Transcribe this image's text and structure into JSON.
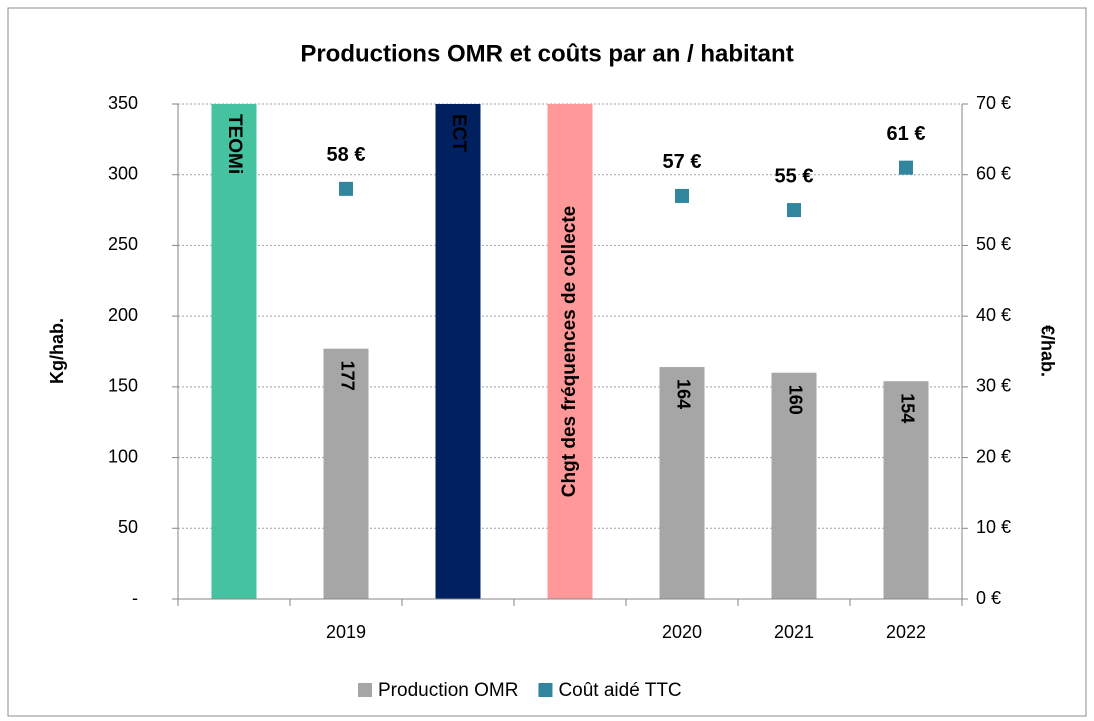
{
  "chart_data": {
    "type": "bar",
    "title": "Productions OMR et coûts par an / habitant",
    "categories": [
      null,
      "2019",
      null,
      null,
      "2020",
      "2021",
      "2022"
    ],
    "series": [
      {
        "name": "Production OMR",
        "type": "bar",
        "color": "#a6a6a6",
        "values": [
          null,
          177,
          null,
          null,
          164,
          160,
          154
        ]
      },
      {
        "name": "Coût aidé TTC",
        "type": "scatter",
        "axis": "y2",
        "color": "#31859c",
        "values": [
          null,
          58,
          null,
          null,
          57,
          55,
          61
        ],
        "value_labels": [
          null,
          "58 €",
          null,
          null,
          "57 €",
          "55 €",
          "61 €"
        ]
      }
    ],
    "annotations": [
      {
        "text": "TEOMi",
        "color": "#45c29f",
        "text_color": "#000000"
      },
      {
        "text": "ECT",
        "color": "#002060",
        "text_color": "#ffffff"
      },
      {
        "text": "Chgt des fréquences de collecte",
        "color": "#ff9999",
        "text_color": "#ffffff"
      }
    ],
    "ylabel": "Kg/hab.",
    "y2label": "€/hab.",
    "ylim": [
      0,
      350
    ],
    "yticks": [
      {
        "value": 0,
        "label": "-"
      },
      50,
      100,
      150,
      200,
      250,
      300,
      350
    ],
    "y2lim": [
      0,
      70
    ],
    "y2ticks": [
      {
        "value": 0,
        "label": "0 €"
      },
      {
        "value": 10,
        "label": "10 €"
      },
      {
        "value": 20,
        "label": "20 €"
      },
      {
        "value": 30,
        "label": "30 €"
      },
      {
        "value": 40,
        "label": "40 €"
      },
      {
        "value": 50,
        "label": "50 €"
      },
      {
        "value": 60,
        "label": "60 €"
      },
      {
        "value": 70,
        "label": "70 €"
      }
    ],
    "grid": true,
    "legend": "bottom"
  }
}
